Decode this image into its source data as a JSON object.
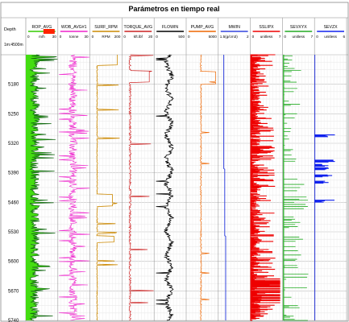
{
  "title": "Parámetros en tiempo real",
  "depth_header": "Depth",
  "depth_scale": "1m:4500m",
  "chart_data": {
    "type": "line",
    "title": "Parámetros en tiempo real",
    "y_axis": {
      "label": "Depth",
      "range": [
        5110,
        5740
      ],
      "ticks": [
        5180,
        5250,
        5320,
        5390,
        5460,
        5530,
        5600,
        5670,
        5740
      ],
      "tick_labels": [
        "5180",
        "5250",
        "5320",
        "5390",
        "5460",
        "5530",
        "5600",
        "5670",
        "5740"
      ],
      "inverted": true
    },
    "grid": true,
    "tracks": [
      {
        "name": "ROP_AVG",
        "unit": "m/h",
        "min_label": "0",
        "max_label": "30",
        "min": 0,
        "max": 30,
        "color": "#33cc00",
        "fill": true
      },
      {
        "name": "WOB_AVG#1",
        "unit": "tonne",
        "min_label": "0",
        "max_label": "30",
        "min": 0,
        "max": 30,
        "color": "#ee22cc"
      },
      {
        "name": "SURF_RPM",
        "unit": "RPM",
        "min_label": "0",
        "max_label": "200",
        "min": 0,
        "max": 200,
        "color": "#cc8800"
      },
      {
        "name": "TORQUE_AVG",
        "unit": "kft.lbf",
        "min_label": "0",
        "max_label": "20",
        "min": 0,
        "max": 20,
        "color": "#cc2222"
      },
      {
        "name": "FLOWIN",
        "unit": "",
        "min_label": "0",
        "max_label": "500",
        "min": 0,
        "max": 500,
        "color": "#000000"
      },
      {
        "name": "PUMP_AVG",
        "unit": "",
        "min_label": "0",
        "max_label": "5000",
        "min": 0,
        "max": 5000,
        "color": "#ee6600"
      },
      {
        "name": "MWIN",
        "unit": "",
        "min_label": "1.5(g/cm3)",
        "max_label": "2",
        "min": 1.5,
        "max": 2,
        "color": "#3344dd"
      },
      {
        "name": "SSLIPX",
        "unit": "unitless",
        "min_label": "0",
        "max_label": "7",
        "min": 0,
        "max": 7,
        "color": "#ee0000"
      },
      {
        "name": "SEVXYX",
        "unit": "unitless",
        "min_label": "0",
        "max_label": "7",
        "min": 0,
        "max": 7,
        "color": "#22aa22"
      },
      {
        "name": "SEVZX",
        "unit": "unitless",
        "min_label": "0",
        "max_label": "6",
        "min": 0,
        "max": 6,
        "color": "#1122ee"
      }
    ]
  }
}
